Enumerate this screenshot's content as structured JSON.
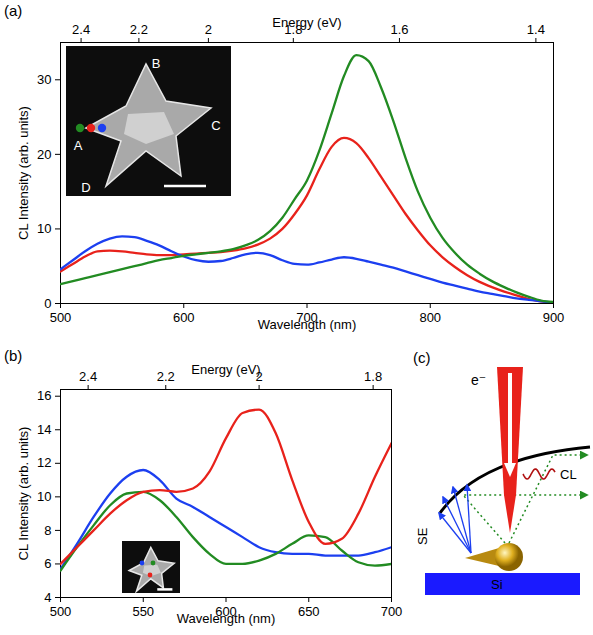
{
  "chart_data": [
    {
      "panel": "(a)",
      "type": "line",
      "x_label": "Wavelength (nm)",
      "y_label": "CL Intensity (arb. units)",
      "x2_label": "Energy (eV)",
      "xlim": [
        500,
        900
      ],
      "xticks": [
        500,
        600,
        700,
        800,
        900
      ],
      "ylim": [
        0,
        35
      ],
      "yticks": [
        0,
        10,
        20,
        30
      ],
      "x2ticks": [
        {
          "value": 516.7,
          "label": "2.4"
        },
        {
          "value": 563.6,
          "label": "2.2"
        },
        {
          "value": 620,
          "label": "2"
        },
        {
          "value": 688.9,
          "label": "1.8"
        },
        {
          "value": 775,
          "label": "1.6"
        },
        {
          "value": 885.7,
          "label": "1.4"
        }
      ],
      "annotations": [
        "A",
        "B",
        "C",
        "D"
      ],
      "x": [
        500,
        510,
        520,
        530,
        540,
        550,
        560,
        570,
        580,
        590,
        600,
        610,
        620,
        630,
        640,
        650,
        660,
        670,
        680,
        690,
        700,
        710,
        720,
        730,
        740,
        750,
        760,
        770,
        780,
        790,
        800,
        810,
        820,
        830,
        840,
        850,
        860,
        870,
        880,
        890,
        900
      ],
      "series": [
        {
          "color": "#e8221b",
          "values": [
            4.3,
            5.3,
            6.3,
            7.0,
            7.1,
            7.0,
            6.8,
            6.6,
            6.5,
            6.5,
            6.6,
            6.7,
            6.8,
            6.9,
            7.1,
            7.4,
            7.9,
            8.7,
            10.0,
            12.0,
            14.5,
            18.0,
            21.0,
            22.2,
            21.5,
            19.5,
            17.0,
            14.5,
            12.0,
            9.8,
            7.8,
            6.2,
            4.9,
            3.8,
            2.9,
            2.2,
            1.6,
            1.1,
            0.6,
            0.3,
            0.1
          ]
        },
        {
          "color": "#1c3ff0",
          "values": [
            4.6,
            5.8,
            7.0,
            8.0,
            8.7,
            9.0,
            8.9,
            8.4,
            7.8,
            7.0,
            6.3,
            5.8,
            5.6,
            5.7,
            6.1,
            6.6,
            6.8,
            6.5,
            5.8,
            5.3,
            5.2,
            5.5,
            5.9,
            6.2,
            6.0,
            5.6,
            5.2,
            4.8,
            4.3,
            3.8,
            3.3,
            2.8,
            2.4,
            2.0,
            1.6,
            1.3,
            1.0,
            0.7,
            0.5,
            0.3,
            0.1
          ]
        },
        {
          "color": "#228b22",
          "values": [
            2.6,
            3.0,
            3.4,
            3.8,
            4.2,
            4.6,
            5.0,
            5.4,
            5.8,
            6.1,
            6.4,
            6.6,
            6.8,
            7.0,
            7.3,
            7.8,
            8.5,
            9.7,
            11.5,
            14.0,
            16.5,
            20.5,
            25.5,
            30.5,
            33.3,
            32.5,
            29.0,
            24.5,
            19.5,
            15.0,
            11.5,
            8.8,
            6.8,
            5.2,
            4.0,
            3.0,
            2.2,
            1.5,
            0.9,
            0.4,
            0.2
          ]
        }
      ]
    },
    {
      "panel": "(b)",
      "type": "line",
      "x_label": "Wavelength (nm)",
      "y_label": "CL Intensity (arb. units)",
      "x2_label": "Energy (eV)",
      "xlim": [
        500,
        700
      ],
      "xticks": [
        500,
        550,
        600,
        650,
        700
      ],
      "ylim": [
        4,
        16.4
      ],
      "yticks": [
        4,
        6,
        8,
        10,
        12,
        14,
        16
      ],
      "x2ticks": [
        {
          "value": 516.7,
          "label": "2.4"
        },
        {
          "value": 563.6,
          "label": "2.2"
        },
        {
          "value": 620,
          "label": "2"
        },
        {
          "value": 688.9,
          "label": "1.8"
        }
      ],
      "x": [
        500,
        510,
        520,
        530,
        540,
        550,
        560,
        570,
        580,
        590,
        600,
        610,
        620,
        630,
        640,
        650,
        660,
        670,
        680,
        690,
        700
      ],
      "series": [
        {
          "color": "#1c3ff0",
          "values": [
            5.7,
            7.2,
            8.8,
            10.2,
            11.2,
            11.6,
            11.0,
            9.9,
            9.4,
            8.8,
            8.2,
            7.6,
            7.0,
            6.7,
            6.6,
            6.6,
            6.5,
            6.5,
            6.5,
            6.7,
            7.0
          ]
        },
        {
          "color": "#228b22",
          "values": [
            5.6,
            7.0,
            8.3,
            9.5,
            10.2,
            10.3,
            9.8,
            8.8,
            7.6,
            6.6,
            6.0,
            6.0,
            6.2,
            6.6,
            7.2,
            7.7,
            7.6,
            6.8,
            6.1,
            5.9,
            6.0
          ]
        },
        {
          "color": "#e8221b",
          "values": [
            6.0,
            7.0,
            8.0,
            9.0,
            9.8,
            10.3,
            10.4,
            10.3,
            10.5,
            11.5,
            13.5,
            15.0,
            15.2,
            13.8,
            11.0,
            8.5,
            7.2,
            7.5,
            9.0,
            11.2,
            13.2
          ]
        }
      ]
    }
  ],
  "diagram": {
    "panel": "(c)",
    "labels": {
      "beam": "e⁻",
      "secondary_electrons": "SE",
      "emission": "CL",
      "substrate": "Si"
    }
  }
}
